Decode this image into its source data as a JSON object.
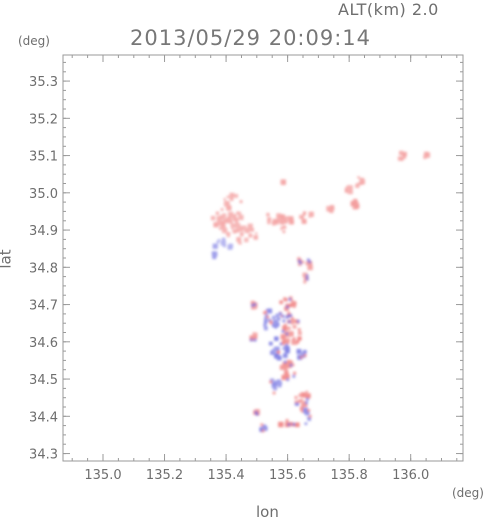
{
  "header": {
    "altitude_label": "ALT(km) 2.0",
    "datetime": "2013/05/29 20:09:14"
  },
  "colors": {
    "frame": "#9a9a9a",
    "text": "#6e6e6e",
    "positive": "#f08080",
    "positive_light": "#f8c8c8",
    "negative": "#7070e0",
    "negative_light": "#c8c8f4"
  },
  "chart_data": {
    "type": "heatmap",
    "title": "2013/05/29 20:09:14",
    "xlabel": "lon",
    "ylabel": "lat",
    "x_unit": "(deg)",
    "y_unit": "(deg)",
    "xlim": [
      134.87,
      136.17
    ],
    "ylim": [
      34.28,
      35.37
    ],
    "x_ticks": [
      135.0,
      135.2,
      135.4,
      135.6,
      135.8,
      136.0
    ],
    "x_tick_labels": [
      "135.0",
      "135.2",
      "135.4",
      "135.6",
      "135.8",
      "136.0"
    ],
    "y_ticks": [
      34.3,
      34.4,
      34.5,
      34.6,
      34.7,
      34.8,
      34.9,
      35.0,
      35.1,
      35.2,
      35.3
    ],
    "y_tick_labels": [
      "34.3",
      "34.4",
      "34.5",
      "34.6",
      "34.7",
      "34.8",
      "34.9",
      "35.0",
      "35.1",
      "35.2",
      "35.3"
    ],
    "grid": false,
    "echoes": [
      {
        "lon": 135.4,
        "lat": 34.93,
        "rlon": 0.05,
        "rlat": 0.035,
        "sign": "pos",
        "strength": 0.35
      },
      {
        "lon": 135.45,
        "lat": 34.89,
        "rlon": 0.05,
        "rlat": 0.03,
        "sign": "pos",
        "strength": 0.3
      },
      {
        "lon": 135.42,
        "lat": 34.98,
        "rlon": 0.03,
        "rlat": 0.02,
        "sign": "pos",
        "strength": 0.35
      },
      {
        "lon": 135.39,
        "lat": 34.86,
        "rlon": 0.03,
        "rlat": 0.015,
        "sign": "neg",
        "strength": 0.3
      },
      {
        "lon": 135.36,
        "lat": 34.83,
        "rlon": 0.01,
        "rlat": 0.008,
        "sign": "neg",
        "strength": 0.5
      },
      {
        "lon": 135.55,
        "lat": 34.93,
        "rlon": 0.025,
        "rlat": 0.02,
        "sign": "pos",
        "strength": 0.4
      },
      {
        "lon": 135.59,
        "lat": 34.92,
        "rlon": 0.03,
        "rlat": 0.025,
        "sign": "pos",
        "strength": 0.45
      },
      {
        "lon": 135.58,
        "lat": 35.03,
        "rlon": 0.01,
        "rlat": 0.01,
        "sign": "pos",
        "strength": 0.45
      },
      {
        "lon": 135.66,
        "lat": 34.94,
        "rlon": 0.02,
        "rlat": 0.018,
        "sign": "pos",
        "strength": 0.4
      },
      {
        "lon": 135.74,
        "lat": 34.96,
        "rlon": 0.01,
        "rlat": 0.01,
        "sign": "pos",
        "strength": 0.4
      },
      {
        "lon": 135.83,
        "lat": 35.03,
        "rlon": 0.015,
        "rlat": 0.012,
        "sign": "pos",
        "strength": 0.45
      },
      {
        "lon": 135.8,
        "lat": 35.01,
        "rlon": 0.01,
        "rlat": 0.008,
        "sign": "pos",
        "strength": 0.4
      },
      {
        "lon": 135.82,
        "lat": 34.97,
        "rlon": 0.008,
        "rlat": 0.01,
        "sign": "pos",
        "strength": 0.5
      },
      {
        "lon": 135.97,
        "lat": 35.1,
        "rlon": 0.012,
        "rlat": 0.012,
        "sign": "pos",
        "strength": 0.4
      },
      {
        "lon": 136.05,
        "lat": 35.1,
        "rlon": 0.006,
        "rlat": 0.006,
        "sign": "pos",
        "strength": 0.4
      },
      {
        "lon": 135.64,
        "lat": 34.82,
        "rlon": 0.01,
        "rlat": 0.015,
        "sign": "pos",
        "strength": 0.55
      },
      {
        "lon": 135.67,
        "lat": 34.81,
        "rlon": 0.01,
        "rlat": 0.012,
        "sign": "pos",
        "strength": 0.6
      },
      {
        "lon": 135.66,
        "lat": 34.77,
        "rlon": 0.01,
        "rlat": 0.012,
        "sign": "pos",
        "strength": 0.55
      },
      {
        "lon": 135.6,
        "lat": 34.69,
        "rlon": 0.03,
        "rlat": 0.03,
        "sign": "pos",
        "strength": 0.75
      },
      {
        "lon": 135.55,
        "lat": 34.66,
        "rlon": 0.035,
        "rlat": 0.03,
        "sign": "neg",
        "strength": 0.6
      },
      {
        "lon": 135.61,
        "lat": 34.63,
        "rlon": 0.035,
        "rlat": 0.04,
        "sign": "pos",
        "strength": 0.75
      },
      {
        "lon": 135.57,
        "lat": 34.58,
        "rlon": 0.03,
        "rlat": 0.03,
        "sign": "neg",
        "strength": 0.65
      },
      {
        "lon": 135.65,
        "lat": 34.57,
        "rlon": 0.015,
        "rlat": 0.02,
        "sign": "neg",
        "strength": 0.6
      },
      {
        "lon": 135.6,
        "lat": 34.52,
        "rlon": 0.025,
        "rlat": 0.03,
        "sign": "pos",
        "strength": 0.65
      },
      {
        "lon": 135.56,
        "lat": 34.48,
        "rlon": 0.02,
        "rlat": 0.02,
        "sign": "neg",
        "strength": 0.55
      },
      {
        "lon": 135.65,
        "lat": 34.44,
        "rlon": 0.025,
        "rlat": 0.03,
        "sign": "pos",
        "strength": 0.75
      },
      {
        "lon": 135.66,
        "lat": 34.4,
        "rlon": 0.015,
        "rlat": 0.02,
        "sign": "neg",
        "strength": 0.65
      },
      {
        "lon": 135.6,
        "lat": 34.38,
        "rlon": 0.035,
        "rlat": 0.01,
        "sign": "pos",
        "strength": 0.85
      },
      {
        "lon": 135.52,
        "lat": 34.37,
        "rlon": 0.01,
        "rlat": 0.01,
        "sign": "neg",
        "strength": 0.7
      },
      {
        "lon": 135.5,
        "lat": 34.41,
        "rlon": 0.005,
        "rlat": 0.005,
        "sign": "pos",
        "strength": 0.9
      },
      {
        "lon": 135.49,
        "lat": 34.61,
        "rlon": 0.01,
        "rlat": 0.015,
        "sign": "pos",
        "strength": 0.6
      },
      {
        "lon": 135.49,
        "lat": 34.7,
        "rlon": 0.005,
        "rlat": 0.01,
        "sign": "pos",
        "strength": 0.6
      }
    ]
  },
  "axes": {
    "xlabel": "lon",
    "ylabel": "lat",
    "x_unit": "(deg)",
    "y_unit": "(deg)"
  }
}
